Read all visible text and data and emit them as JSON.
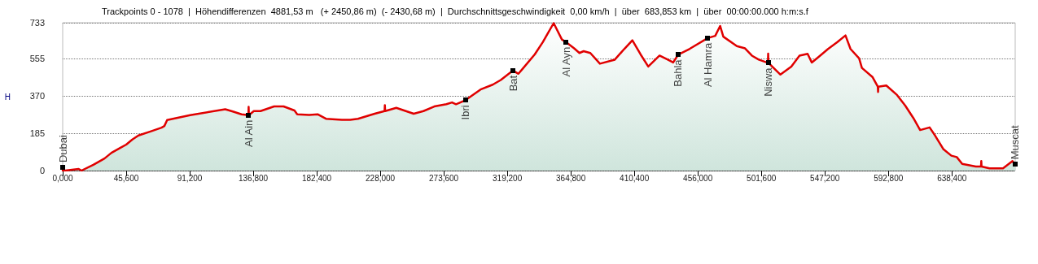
{
  "chart_data": {
    "type": "area",
    "title": "Trackpoints 0 - 1078  |  Höhendifferenzen  4881,53 m   (+ 2450,86 m)  (- 2430,68 m)  |  Durchschnittsgeschwindigkeit  0,00 km/h  |  über  683,853 km  |  über  00:00:00.000 h:m:s.f",
    "ylabel": "H",
    "series": [
      {
        "color": "#e00000",
        "x": [
          0,
          1.8,
          11.5,
          13.5,
          22,
          30,
          35,
          41.5,
          45.6,
          50,
          54.4,
          63,
          71,
          73,
          75,
          91.5,
          116.7,
          122.6,
          128.4,
          133.3,
          133.5,
          133.7,
          137.2,
          142,
          151.8,
          158.6,
          166.4,
          168.4,
          177,
          183,
          189,
          200.5,
          206.4,
          212,
          224,
          231.1,
          231.3,
          231.5,
          239.5,
          252,
          259,
          266.8,
          275.5,
          279.5,
          282.4,
          289.2,
          300,
          308.7,
          314.5,
          323.3,
          327.2,
          330,
          338.9,
          344.7,
          348.6,
          352.5,
          358.4,
          361.3,
          367.2,
          371,
          374,
          378.8,
          385.7,
          396.4,
          403.2,
          409,
          414.9,
          420.4,
          428.5,
          434.4,
          438.3,
          441.8,
          450,
          463.1,
          468.5,
          472,
          474.3,
          484,
          489.9,
          494.8,
          499.7,
          506.3,
          506.5,
          506.7,
          515.3,
          523.1,
          529,
          534.8,
          537.8,
          542.6,
          549.5,
          556.2,
          562,
          565.6,
          571.8,
          573.8,
          581.5,
          585.2,
          585.4,
          585.6,
          591.3,
          599,
          604.9,
          610.7,
          615.6,
          622.4,
          626.3,
          632.2,
          638,
          641.9,
          645.8,
          655.6,
          659.3,
          659.5,
          659.7,
          665.4,
          675.1,
          681.9,
          683.85
        ],
        "values": [
          0,
          0,
          8,
          0,
          29,
          60,
          88,
          113,
          129,
          154,
          174,
          194,
          213,
          221,
          251,
          275,
          304,
          292,
          279,
          275,
          316,
          275,
          295,
          295,
          318,
          318,
          298,
          279,
          276,
          279,
          257,
          252,
          252,
          257,
          282,
          295,
          324,
          295,
          311,
          282,
          295,
          318,
          329,
          338,
          329,
          349,
          402,
          426,
          449,
          496,
          480,
          503,
          576,
          637,
          684,
          731,
          650,
          637,
          606,
          583,
          592,
          583,
          530,
          550,
          603,
          646,
          576,
          516,
          570,
          550,
          536,
          574,
          603,
          657,
          668,
          717,
          664,
          617,
          606,
          570,
          550,
          534,
          580,
          534,
          476,
          516,
          570,
          579,
          536,
          563,
          603,
          637,
          670,
          603,
          556,
          509,
          463,
          416,
          390,
          416,
          422,
          375,
          322,
          261,
          201,
          214,
          174,
          107,
          74,
          67,
          33,
          20,
          20,
          47,
          20,
          11,
          11,
          47,
          31
        ]
      }
    ],
    "xlim": [
      0,
      683.853
    ],
    "xticks": [
      {
        "value": 0,
        "label": "0,000"
      },
      {
        "value": 45.6,
        "label": "45,600"
      },
      {
        "value": 91.2,
        "label": "91,200"
      },
      {
        "value": 136.8,
        "label": "136,800"
      },
      {
        "value": 182.4,
        "label": "182,400"
      },
      {
        "value": 228,
        "label": "228,000"
      },
      {
        "value": 273.6,
        "label": "273,600"
      },
      {
        "value": 319.2,
        "label": "319,200"
      },
      {
        "value": 364.8,
        "label": "364,800"
      },
      {
        "value": 410.4,
        "label": "410,400"
      },
      {
        "value": 456,
        "label": "456,000"
      },
      {
        "value": 501.6,
        "label": "501,600"
      },
      {
        "value": 547.2,
        "label": "547,200"
      },
      {
        "value": 592.8,
        "label": "592,800"
      },
      {
        "value": 638.4,
        "label": "638,400"
      }
    ],
    "ylim": [
      0,
      733
    ],
    "yticks": [
      0,
      185,
      370,
      555,
      733
    ],
    "grid": "y",
    "line_style": "solid",
    "annotations": [
      {
        "text": "Dubai",
        "x": 0,
        "y": 16
      },
      {
        "text": "Al Ain",
        "x": 133.3,
        "y": 275
      },
      {
        "text": "Ibri",
        "x": 289.2,
        "y": 349
      },
      {
        "text": "Bat",
        "x": 323.3,
        "y": 496
      },
      {
        "text": "Al Ayn",
        "x": 361.3,
        "y": 637
      },
      {
        "text": "Bahla",
        "x": 441.8,
        "y": 574
      },
      {
        "text": "Al Hamra",
        "x": 463.1,
        "y": 657
      },
      {
        "text": "Niswa",
        "x": 506.5,
        "y": 534
      },
      {
        "text": "Muscat",
        "x": 683.85,
        "y": 31
      }
    ]
  }
}
